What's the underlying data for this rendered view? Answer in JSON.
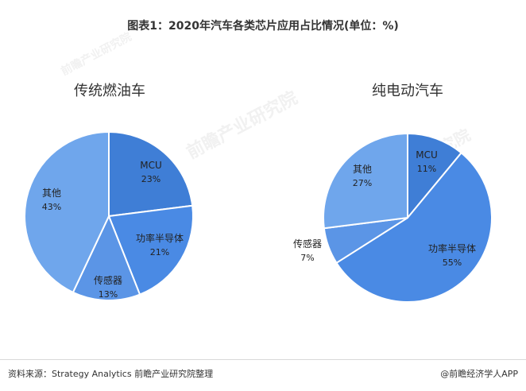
{
  "title": "图表1：2020年汽车各类芯片应用占比情况(单位：%)",
  "source": "资料来源：Strategy Analytics 前瞻产业研究院整理",
  "brand": "@前瞻经济学人APP",
  "watermark": "前瞻产业研究院",
  "chart_data": [
    {
      "type": "pie",
      "title": "传统燃油车",
      "categories": [
        "MCU",
        "功率半导体",
        "传感器",
        "其他"
      ],
      "values": [
        23,
        21,
        13,
        43
      ],
      "colors": [
        "#3f7ed6",
        "#4a8ae4",
        "#5b95e6",
        "#6fa6ec"
      ]
    },
    {
      "type": "pie",
      "title": "纯电动汽车",
      "categories": [
        "MCU",
        "功率半导体",
        "传感器",
        "其他"
      ],
      "values": [
        11,
        55,
        7,
        27
      ],
      "colors": [
        "#3f7ed6",
        "#4a8ae4",
        "#5b95e6",
        "#6fa6ec"
      ]
    }
  ]
}
